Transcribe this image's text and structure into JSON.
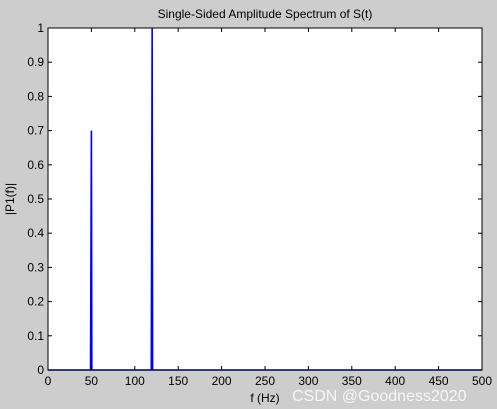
{
  "chart_data": {
    "type": "line",
    "title": "Single-Sided Amplitude Spectrum of S(t)",
    "xlabel": "f (Hz)",
    "ylabel": "|P1(f)|",
    "xlim": [
      0,
      500
    ],
    "ylim": [
      0,
      1
    ],
    "grid": false,
    "xticks": [
      0,
      50,
      100,
      150,
      200,
      250,
      300,
      350,
      400,
      450,
      500
    ],
    "yticks": [
      0,
      0.1,
      0.2,
      0.3,
      0.4,
      0.5,
      0.6,
      0.7,
      0.8,
      0.9,
      1
    ],
    "xtick_labels": [
      "0",
      "50",
      "100",
      "150",
      "200",
      "250",
      "300",
      "350",
      "400",
      "450",
      "500"
    ],
    "ytick_labels": [
      "0",
      "0.1",
      "0.2",
      "0.3",
      "0.4",
      "0.5",
      "0.6",
      "0.7",
      "0.8",
      "0.9",
      "1"
    ],
    "series": [
      {
        "x": [
          0,
          49,
          49.5,
          50,
          50.5,
          51,
          119,
          119.5,
          120,
          120.5,
          121,
          500
        ],
        "values": [
          0,
          0,
          0.35,
          0.7,
          0,
          0,
          0,
          0.5,
          1.0,
          0,
          0,
          0
        ],
        "color": "#0000ff"
      }
    ]
  },
  "watermark": "CSDN @Goodness2020"
}
